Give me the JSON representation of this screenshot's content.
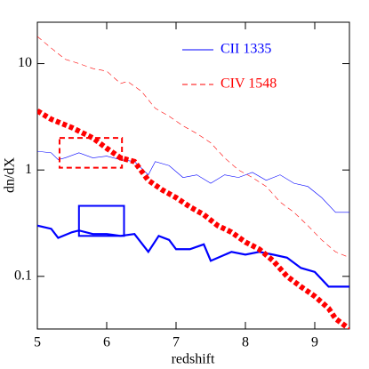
{
  "chart_data": {
    "type": "line",
    "xlabel": "redshift",
    "ylabel": "dn/dX",
    "xlim": [
      5,
      9.5
    ],
    "xticks": [
      5,
      6,
      7,
      8,
      9
    ],
    "ylim": [
      0.032,
      24.5
    ],
    "yticks": [
      0.1,
      1,
      10
    ],
    "ylog": true,
    "series": [
      {
        "name": "CII 1335",
        "color": "#0000ff",
        "style": "solid",
        "width": 0.6,
        "x": [
          5,
          5.2,
          5.3,
          5.4,
          5.6,
          5.8,
          6.0,
          6.2,
          6.4,
          6.6,
          6.7,
          6.9,
          7.1,
          7.3,
          7.5,
          7.7,
          7.9,
          8.1,
          8.3,
          8.5,
          8.7,
          8.9,
          9.1,
          9.3,
          9.5
        ],
        "values": [
          1.5,
          1.45,
          1.25,
          1.3,
          1.45,
          1.3,
          1.35,
          1.25,
          1.2,
          0.9,
          1.2,
          1.1,
          0.85,
          0.9,
          0.75,
          0.9,
          0.85,
          0.95,
          0.8,
          0.9,
          0.75,
          0.7,
          0.55,
          0.4,
          0.4
        ]
      },
      {
        "name": "CIV 1548",
        "color": "#ff0000",
        "style": "dashed",
        "width": 0.6,
        "x": [
          5,
          5.2,
          5.4,
          5.6,
          5.8,
          6.0,
          6.2,
          6.3,
          6.5,
          6.7,
          6.9,
          7.1,
          7.3,
          7.5,
          7.7,
          7.9,
          8.1,
          8.3,
          8.5,
          8.7,
          8.9,
          9.1,
          9.3,
          9.5
        ],
        "values": [
          18,
          14,
          11,
          10,
          9,
          8.5,
          6.5,
          6.8,
          5.5,
          3.8,
          3.2,
          2.6,
          2.2,
          1.8,
          1.3,
          1.0,
          0.85,
          0.7,
          0.5,
          0.4,
          0.3,
          0.22,
          0.17,
          0.15
        ]
      },
      {
        "color": "#0000ff",
        "style": "solid",
        "width": 2.2,
        "x": [
          5,
          5.2,
          5.3,
          5.5,
          5.6,
          5.8,
          6.0,
          6.2,
          6.4,
          6.6,
          6.75,
          6.9,
          7.0,
          7.2,
          7.4,
          7.5,
          7.8,
          8.0,
          8.2,
          8.4,
          8.6,
          8.8,
          9.0,
          9.2,
          9.5
        ],
        "values": [
          0.3,
          0.28,
          0.23,
          0.26,
          0.27,
          0.25,
          0.25,
          0.24,
          0.25,
          0.17,
          0.24,
          0.22,
          0.18,
          0.18,
          0.2,
          0.14,
          0.17,
          0.16,
          0.17,
          0.16,
          0.15,
          0.12,
          0.11,
          0.08,
          0.08
        ]
      },
      {
        "color": "#ff0000",
        "style": "dotted",
        "width": 6,
        "x": [
          5,
          5.2,
          5.5,
          5.8,
          6.0,
          6.2,
          6.4,
          6.6,
          6.8,
          7.0,
          7.2,
          7.4,
          7.6,
          7.8,
          8.0,
          8.2,
          8.4,
          8.6,
          8.8,
          9.0,
          9.2,
          9.3,
          9.5
        ],
        "values": [
          3.6,
          3.0,
          2.5,
          2.0,
          1.6,
          1.3,
          1.2,
          0.8,
          0.65,
          0.55,
          0.45,
          0.38,
          0.3,
          0.26,
          0.21,
          0.18,
          0.14,
          0.1,
          0.08,
          0.065,
          0.05,
          0.04,
          0.032
        ]
      }
    ],
    "boxes": [
      {
        "color": "#0000ff",
        "style": "solid",
        "x": [
          5.6,
          6.25
        ],
        "y": [
          0.24,
          0.46
        ]
      },
      {
        "color": "#ff0000",
        "style": "dashed",
        "x": [
          5.32,
          6.22
        ],
        "y": [
          1.05,
          2.0
        ]
      }
    ]
  }
}
